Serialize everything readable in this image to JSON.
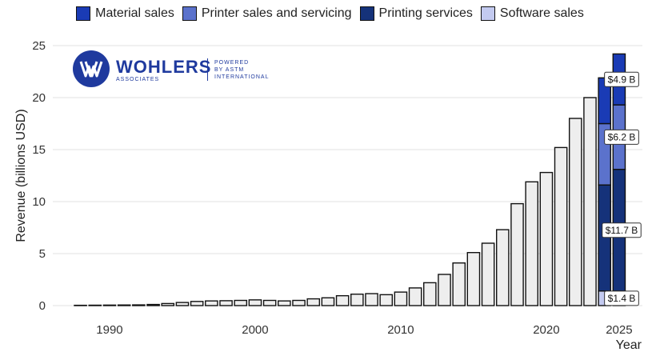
{
  "legend": [
    {
      "label": "Material sales",
      "color": "#1a3bb5"
    },
    {
      "label": "Printer sales and servicing",
      "color": "#5b72cc"
    },
    {
      "label": "Printing services",
      "color": "#15327a"
    },
    {
      "label": "Software sales",
      "color": "#c3caf0"
    }
  ],
  "logo": {
    "name": "WOHLERS",
    "sub": "ASSOCIATES",
    "powered": "POWERED\nBY ASTM\nINTERNATIONAL"
  },
  "chart_data": {
    "type": "bar",
    "ylabel": "Revenue (billions USD)",
    "xlabel": "Year",
    "ylim": [
      0,
      25
    ],
    "yticks": [
      0,
      5,
      10,
      15,
      20,
      25
    ],
    "xticks": [
      1990,
      2000,
      2010,
      2020,
      2025
    ],
    "grid": true,
    "legend_position": "top",
    "bar_color": "#eeeeee",
    "years": [
      1988,
      1989,
      1990,
      1991,
      1992,
      1993,
      1994,
      1995,
      1996,
      1997,
      1998,
      1999,
      2000,
      2001,
      2002,
      2003,
      2004,
      2005,
      2006,
      2007,
      2008,
      2009,
      2010,
      2011,
      2012,
      2013,
      2014,
      2015,
      2016,
      2017,
      2018,
      2019,
      2020,
      2021,
      2022
    ],
    "values": [
      0.03,
      0.04,
      0.05,
      0.06,
      0.07,
      0.11,
      0.2,
      0.3,
      0.4,
      0.45,
      0.47,
      0.5,
      0.55,
      0.5,
      0.45,
      0.5,
      0.65,
      0.75,
      0.95,
      1.1,
      1.15,
      1.05,
      1.3,
      1.7,
      2.2,
      3.0,
      4.1,
      5.1,
      6.0,
      7.3,
      9.8,
      11.9,
      12.8,
      15.2,
      18.0
    ],
    "total_years": [
      2023
    ],
    "total_values": [
      20.0
    ],
    "stacked_years": [
      2024,
      2025
    ],
    "stack_order": [
      "Software sales",
      "Printing services",
      "Printer sales and servicing",
      "Material sales"
    ],
    "stacked": {
      "2024": [
        1.4,
        10.2,
        5.9,
        4.4
      ],
      "2025": [
        1.4,
        11.7,
        6.2,
        4.9
      ]
    },
    "annotations": [
      {
        "series": "Material sales",
        "label": "$4.9 B"
      },
      {
        "series": "Printer sales and servicing",
        "label": "$6.2 B"
      },
      {
        "series": "Printing services",
        "label": "$11.7 B"
      },
      {
        "series": "Software sales",
        "label": "$1.4 B"
      }
    ]
  }
}
